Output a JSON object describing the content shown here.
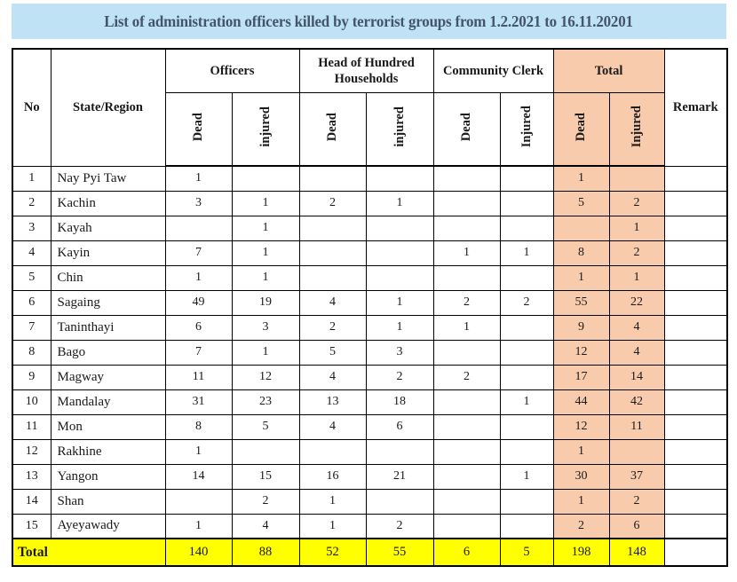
{
  "title": "List of administration officers killed by terrorist groups from 1.2.2021 to 16.11.20201",
  "colors": {
    "title_bg": "#bfe3f4",
    "title_text": "#44546a",
    "peach": "#f8cbad",
    "yellow": "#ffff00",
    "line": "#000000"
  },
  "header": {
    "no": "No",
    "state_region": "State/Region",
    "remark": "Remark",
    "groups": [
      {
        "label": "Officers",
        "sub": [
          "Dead",
          "injured"
        ]
      },
      {
        "label": "Head of Hundred Households",
        "sub": [
          "Dead",
          "injured"
        ]
      },
      {
        "label": "Community Clerk",
        "sub": [
          "Dead",
          "Injured"
        ]
      },
      {
        "label": "Total",
        "sub": [
          "Dead",
          "Injured"
        ]
      }
    ]
  },
  "rows": [
    {
      "no": "1",
      "state": "Nay Pyi Taw",
      "values": [
        "1",
        "",
        "",
        "",
        "",
        "",
        "1",
        ""
      ],
      "remark": ""
    },
    {
      "no": "2",
      "state": "Kachin",
      "values": [
        "3",
        "1",
        "2",
        "1",
        "",
        "",
        "5",
        "2"
      ],
      "remark": ""
    },
    {
      "no": "3",
      "state": "Kayah",
      "values": [
        "",
        "1",
        "",
        "",
        "",
        "",
        "",
        "1"
      ],
      "remark": ""
    },
    {
      "no": "4",
      "state": "Kayin",
      "values": [
        "7",
        "1",
        "",
        "",
        "1",
        "1",
        "8",
        "2"
      ],
      "remark": ""
    },
    {
      "no": "5",
      "state": "Chin",
      "values": [
        "1",
        "1",
        "",
        "",
        "",
        "",
        "1",
        "1"
      ],
      "remark": ""
    },
    {
      "no": "6",
      "state": "Sagaing",
      "values": [
        "49",
        "19",
        "4",
        "1",
        "2",
        "2",
        "55",
        "22"
      ],
      "remark": ""
    },
    {
      "no": "7",
      "state": "Taninthayi",
      "values": [
        "6",
        "3",
        "2",
        "1",
        "1",
        "",
        "9",
        "4"
      ],
      "remark": ""
    },
    {
      "no": "8",
      "state": "Bago",
      "values": [
        "7",
        "1",
        "5",
        "3",
        "",
        "",
        "12",
        "4"
      ],
      "remark": ""
    },
    {
      "no": "9",
      "state": "Magway",
      "values": [
        "11",
        "12",
        "4",
        "2",
        "2",
        "",
        "17",
        "14"
      ],
      "remark": ""
    },
    {
      "no": "10",
      "state": "Mandalay",
      "values": [
        "31",
        "23",
        "13",
        "18",
        "",
        "1",
        "44",
        "42"
      ],
      "remark": ""
    },
    {
      "no": "11",
      "state": "Mon",
      "values": [
        "8",
        "5",
        "4",
        "6",
        "",
        "",
        "12",
        "11"
      ],
      "remark": ""
    },
    {
      "no": "12",
      "state": "Rakhine",
      "values": [
        "1",
        "",
        "",
        "",
        "",
        "",
        "1",
        ""
      ],
      "remark": ""
    },
    {
      "no": "13",
      "state": "Yangon",
      "values": [
        "14",
        "15",
        "16",
        "21",
        "",
        "1",
        "30",
        "37"
      ],
      "remark": ""
    },
    {
      "no": "14",
      "state": "Shan",
      "values": [
        "",
        "2",
        "1",
        "",
        "",
        "",
        "1",
        "2"
      ],
      "remark": ""
    },
    {
      "no": "15",
      "state": "Ayeyawady",
      "values": [
        "1",
        "4",
        "1",
        "2",
        "",
        "",
        "2",
        "6"
      ],
      "remark": ""
    }
  ],
  "total_row": {
    "label": "Total",
    "values": [
      "140",
      "88",
      "52",
      "55",
      "6",
      "5",
      "198",
      "148"
    ],
    "remark": ""
  }
}
